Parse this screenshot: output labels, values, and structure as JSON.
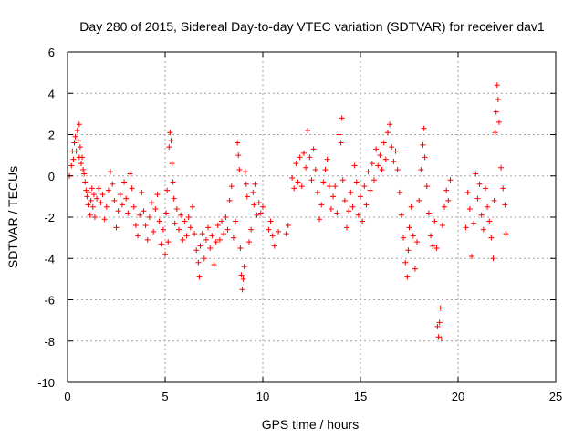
{
  "chart_data": {
    "type": "scatter",
    "title": "Day 280 of 2015, Sidereal Day-to-day VTEC variation (SDTVAR) for receiver dav1",
    "xlabel": "GPS time / hours",
    "ylabel": "SDTVAR / TECUs",
    "xlim": [
      0,
      25
    ],
    "ylim": [
      -10,
      6
    ],
    "xticks": [
      0,
      5,
      10,
      15,
      20,
      25
    ],
    "xtick_labels": [
      "0",
      "5",
      "10",
      "15",
      "20",
      "25"
    ],
    "yticks": [
      -10,
      -8,
      -6,
      -4,
      -2,
      0,
      2,
      4,
      6
    ],
    "ytick_labels": [
      "-10",
      "-8",
      "-6",
      "-4",
      "-2",
      "0",
      "2",
      "4",
      "6"
    ],
    "grid": true,
    "marker": "+",
    "series": [
      {
        "name": "dav1",
        "color": "#ff0000",
        "points": [
          [
            0.1,
            0.0
          ],
          [
            0.2,
            0.5
          ],
          [
            0.25,
            1.2
          ],
          [
            0.3,
            0.8
          ],
          [
            0.35,
            1.6
          ],
          [
            0.4,
            1.9
          ],
          [
            0.45,
            1.2
          ],
          [
            0.5,
            2.2
          ],
          [
            0.55,
            1.7
          ],
          [
            0.6,
            2.5
          ],
          [
            0.6,
            0.9
          ],
          [
            0.65,
            1.4
          ],
          [
            0.7,
            0.6
          ],
          [
            0.75,
            0.9
          ],
          [
            0.8,
            0.3
          ],
          [
            0.85,
            0.1
          ],
          [
            0.9,
            -0.3
          ],
          [
            0.95,
            -0.7
          ],
          [
            1.0,
            -1.0
          ],
          [
            1.05,
            -1.4
          ],
          [
            1.1,
            -0.8
          ],
          [
            1.15,
            -1.9
          ],
          [
            1.2,
            -1.2
          ],
          [
            1.25,
            -0.6
          ],
          [
            1.3,
            -1.5
          ],
          [
            1.35,
            -0.9
          ],
          [
            1.4,
            -2.0
          ],
          [
            1.5,
            -1.1
          ],
          [
            1.6,
            -0.6
          ],
          [
            1.7,
            -1.3
          ],
          [
            1.8,
            -0.9
          ],
          [
            1.9,
            -2.1
          ],
          [
            2.0,
            -1.5
          ],
          [
            2.1,
            -0.7
          ],
          [
            2.2,
            0.2
          ],
          [
            2.3,
            -0.4
          ],
          [
            2.4,
            -1.2
          ],
          [
            2.5,
            -2.5
          ],
          [
            2.6,
            -1.7
          ],
          [
            2.7,
            -0.9
          ],
          [
            2.8,
            -1.4
          ],
          [
            2.9,
            -0.3
          ],
          [
            3.0,
            -1.1
          ],
          [
            3.1,
            -1.8
          ],
          [
            3.2,
            0.1
          ],
          [
            3.3,
            -0.6
          ],
          [
            3.4,
            -1.5
          ],
          [
            3.5,
            -2.4
          ],
          [
            3.6,
            -2.9
          ],
          [
            3.7,
            -1.9
          ],
          [
            3.8,
            -0.8
          ],
          [
            3.9,
            -1.7
          ],
          [
            4.0,
            -2.4
          ],
          [
            4.1,
            -3.1
          ],
          [
            4.2,
            -2.0
          ],
          [
            4.3,
            -1.3
          ],
          [
            4.4,
            -2.7
          ],
          [
            4.5,
            -1.6
          ],
          [
            4.6,
            -0.9
          ],
          [
            4.7,
            -2.2
          ],
          [
            4.8,
            -3.3
          ],
          [
            4.9,
            -2.6
          ],
          [
            5.0,
            -3.8
          ],
          [
            5.05,
            -1.8
          ],
          [
            5.1,
            -0.7
          ],
          [
            5.15,
            -3.2
          ],
          [
            5.2,
            1.4
          ],
          [
            5.25,
            2.1
          ],
          [
            5.3,
            1.7
          ],
          [
            5.35,
            0.6
          ],
          [
            5.4,
            -0.3
          ],
          [
            5.45,
            -1.1
          ],
          [
            5.5,
            -2.3
          ],
          [
            5.6,
            -1.6
          ],
          [
            5.7,
            -2.6
          ],
          [
            5.8,
            -1.9
          ],
          [
            5.9,
            -3.1
          ],
          [
            6.0,
            -2.2
          ],
          [
            6.1,
            -2.9
          ],
          [
            6.2,
            -2.0
          ],
          [
            6.3,
            -2.5
          ],
          [
            6.4,
            -1.5
          ],
          [
            6.5,
            -2.8
          ],
          [
            6.6,
            -3.6
          ],
          [
            6.7,
            -4.2
          ],
          [
            6.75,
            -4.9
          ],
          [
            6.8,
            -3.4
          ],
          [
            6.9,
            -2.8
          ],
          [
            7.0,
            -4.0
          ],
          [
            7.1,
            -3.1
          ],
          [
            7.2,
            -2.5
          ],
          [
            7.3,
            -3.5
          ],
          [
            7.4,
            -2.9
          ],
          [
            7.5,
            -4.3
          ],
          [
            7.6,
            -3.2
          ],
          [
            7.7,
            -2.4
          ],
          [
            7.8,
            -3.1
          ],
          [
            7.9,
            -2.2
          ],
          [
            8.0,
            -2.8
          ],
          [
            8.1,
            -2.0
          ],
          [
            8.2,
            -2.6
          ],
          [
            8.3,
            -1.2
          ],
          [
            8.4,
            -0.5
          ],
          [
            8.5,
            -3.0
          ],
          [
            8.6,
            -2.2
          ],
          [
            8.7,
            1.6
          ],
          [
            8.75,
            1.0
          ],
          [
            8.8,
            0.3
          ],
          [
            8.85,
            -3.5
          ],
          [
            8.9,
            -4.8
          ],
          [
            8.95,
            -5.5
          ],
          [
            9.0,
            -5.0
          ],
          [
            9.05,
            -4.4
          ],
          [
            9.1,
            0.2
          ],
          [
            9.15,
            -0.4
          ],
          [
            9.2,
            -1.0
          ],
          [
            9.3,
            -3.2
          ],
          [
            9.4,
            -2.6
          ],
          [
            9.5,
            -0.8
          ],
          [
            9.55,
            -1.4
          ],
          [
            9.6,
            -0.4
          ],
          [
            9.7,
            -1.9
          ],
          [
            9.8,
            -1.3
          ],
          [
            9.9,
            -1.8
          ],
          [
            10.0,
            -1.5
          ],
          [
            10.3,
            -2.6
          ],
          [
            10.4,
            -2.2
          ],
          [
            10.5,
            -2.9
          ],
          [
            10.6,
            -3.4
          ],
          [
            10.8,
            -2.7
          ],
          [
            11.2,
            -2.8
          ],
          [
            11.3,
            -2.4
          ],
          [
            11.5,
            -0.1
          ],
          [
            11.6,
            -0.6
          ],
          [
            11.7,
            0.6
          ],
          [
            11.8,
            -0.3
          ],
          [
            11.9,
            0.9
          ],
          [
            12.0,
            -0.5
          ],
          [
            12.1,
            1.1
          ],
          [
            12.2,
            0.4
          ],
          [
            12.3,
            2.2
          ],
          [
            12.4,
            0.9
          ],
          [
            12.5,
            -0.2
          ],
          [
            12.6,
            1.3
          ],
          [
            12.7,
            0.3
          ],
          [
            12.8,
            -0.8
          ],
          [
            12.9,
            -2.1
          ],
          [
            13.0,
            -1.4
          ],
          [
            13.1,
            -0.3
          ],
          [
            13.2,
            0.3
          ],
          [
            13.3,
            0.8
          ],
          [
            13.4,
            -0.5
          ],
          [
            13.5,
            -1.6
          ],
          [
            13.6,
            -1.0
          ],
          [
            13.7,
            -0.5
          ],
          [
            13.8,
            -1.8
          ],
          [
            13.9,
            2.0
          ],
          [
            14.0,
            1.6
          ],
          [
            14.05,
            2.8
          ],
          [
            14.1,
            -0.2
          ],
          [
            14.2,
            -1.2
          ],
          [
            14.3,
            -2.5
          ],
          [
            14.4,
            -1.7
          ],
          [
            14.5,
            -0.8
          ],
          [
            14.6,
            -1.5
          ],
          [
            14.7,
            0.5
          ],
          [
            14.8,
            -0.3
          ],
          [
            14.9,
            -1.9
          ],
          [
            15.0,
            -1.0
          ],
          [
            15.1,
            -2.2
          ],
          [
            15.2,
            -0.5
          ],
          [
            15.3,
            -1.4
          ],
          [
            15.4,
            0.2
          ],
          [
            15.5,
            -0.7
          ],
          [
            15.6,
            0.6
          ],
          [
            15.7,
            -0.2
          ],
          [
            15.8,
            1.3
          ],
          [
            15.9,
            0.5
          ],
          [
            16.0,
            1.0
          ],
          [
            16.1,
            0.3
          ],
          [
            16.2,
            1.6
          ],
          [
            16.3,
            0.8
          ],
          [
            16.4,
            2.1
          ],
          [
            16.5,
            2.5
          ],
          [
            16.6,
            1.4
          ],
          [
            16.7,
            0.7
          ],
          [
            16.8,
            1.2
          ],
          [
            16.9,
            0.3
          ],
          [
            17.0,
            -0.8
          ],
          [
            17.1,
            -1.9
          ],
          [
            17.2,
            -3.0
          ],
          [
            17.3,
            -4.2
          ],
          [
            17.4,
            -4.9
          ],
          [
            17.45,
            -3.6
          ],
          [
            17.5,
            -2.5
          ],
          [
            17.6,
            -1.5
          ],
          [
            17.7,
            -2.9
          ],
          [
            17.8,
            -4.5
          ],
          [
            17.9,
            -3.2
          ],
          [
            18.0,
            -1.2
          ],
          [
            18.1,
            0.3
          ],
          [
            18.2,
            1.5
          ],
          [
            18.25,
            2.3
          ],
          [
            18.3,
            0.9
          ],
          [
            18.4,
            -0.5
          ],
          [
            18.5,
            -1.8
          ],
          [
            18.6,
            -2.9
          ],
          [
            18.7,
            -3.4
          ],
          [
            18.8,
            -2.2
          ],
          [
            18.9,
            -3.5
          ],
          [
            18.95,
            -7.3
          ],
          [
            19.0,
            -7.8
          ],
          [
            19.05,
            -7.1
          ],
          [
            19.1,
            -6.4
          ],
          [
            19.15,
            -7.9
          ],
          [
            19.2,
            -2.4
          ],
          [
            19.3,
            -1.5
          ],
          [
            19.4,
            -0.7
          ],
          [
            19.5,
            -1.2
          ],
          [
            19.6,
            -0.2
          ],
          [
            20.4,
            -2.5
          ],
          [
            20.5,
            -0.8
          ],
          [
            20.6,
            -1.6
          ],
          [
            20.7,
            -3.9
          ],
          [
            20.8,
            -2.3
          ],
          [
            20.9,
            0.1
          ],
          [
            21.0,
            -1.1
          ],
          [
            21.1,
            -0.4
          ],
          [
            21.2,
            -1.9
          ],
          [
            21.3,
            -2.6
          ],
          [
            21.4,
            -0.6
          ],
          [
            21.5,
            -1.5
          ],
          [
            21.6,
            -2.2
          ],
          [
            21.7,
            -3.0
          ],
          [
            21.8,
            -4.0
          ],
          [
            21.85,
            -1.2
          ],
          [
            21.9,
            2.1
          ],
          [
            21.95,
            3.1
          ],
          [
            22.0,
            4.4
          ],
          [
            22.05,
            3.7
          ],
          [
            22.1,
            2.6
          ],
          [
            22.2,
            0.4
          ],
          [
            22.3,
            -0.6
          ],
          [
            22.4,
            -1.4
          ],
          [
            22.45,
            -2.8
          ]
        ]
      }
    ]
  }
}
